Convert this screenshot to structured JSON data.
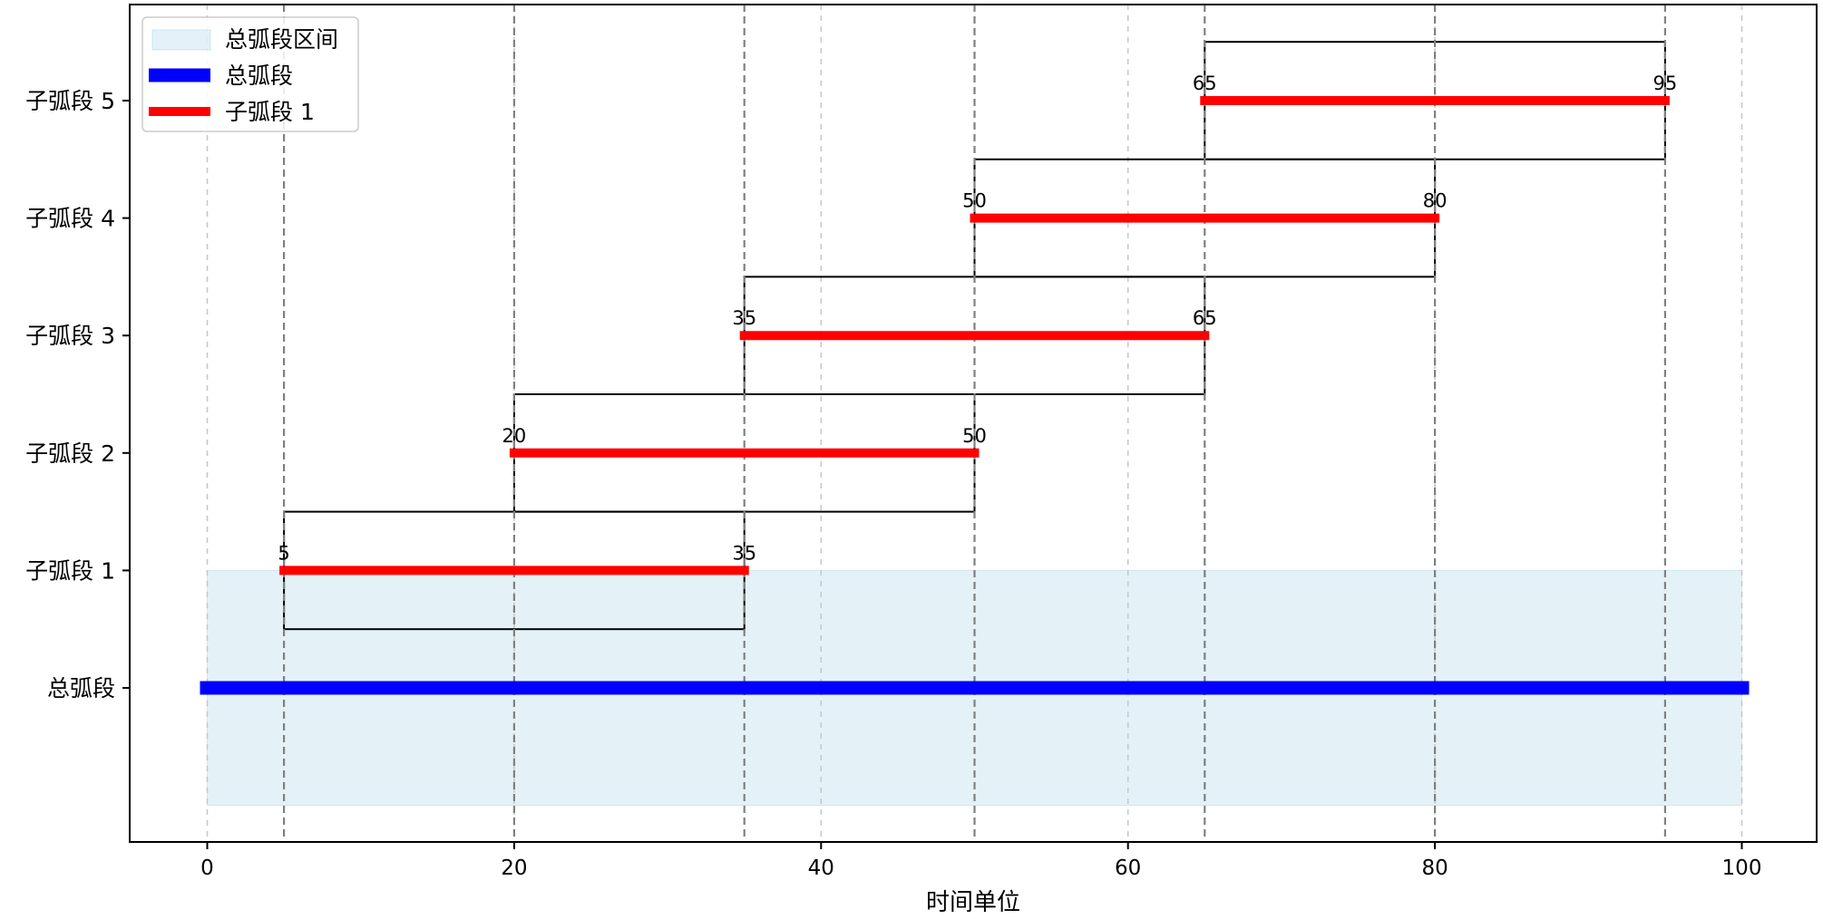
{
  "chart_data": {
    "type": "gantt",
    "title": "",
    "xlabel": "时间单位",
    "ylabel": "",
    "xlim": [
      -5,
      105
    ],
    "xticks": [
      0,
      20,
      40,
      60,
      80,
      100
    ],
    "xtick_labels": [
      "0",
      "20",
      "40",
      "60",
      "80",
      "100"
    ],
    "rows": [
      "总弧段",
      "子弧段 1",
      "子弧段 2",
      "子弧段 3",
      "子弧段 4",
      "子弧段 5"
    ],
    "total_arc": {
      "name": "总弧段",
      "start": 0,
      "end": 100,
      "color": "#0000ff"
    },
    "total_range": {
      "name": "总弧段区间",
      "start": 0,
      "end": 100,
      "color": "#add8e6"
    },
    "sub_arcs": [
      {
        "name": "子弧段 1",
        "start": 5,
        "end": 35,
        "start_label": "5",
        "end_label": "35"
      },
      {
        "name": "子弧段 2",
        "start": 20,
        "end": 50,
        "start_label": "20",
        "end_label": "50"
      },
      {
        "name": "子弧段 3",
        "start": 35,
        "end": 65,
        "start_label": "35",
        "end_label": "65"
      },
      {
        "name": "子弧段 4",
        "start": 50,
        "end": 80,
        "start_label": "50",
        "end_label": "80"
      },
      {
        "name": "子弧段 5",
        "start": 65,
        "end": 95,
        "start_label": "65",
        "end_label": "95"
      }
    ],
    "sub_arc_color": "#ff0000",
    "boundary_lines": [
      5,
      20,
      35,
      50,
      65,
      80,
      95
    ],
    "grid": true,
    "legend": {
      "placement": "top-left",
      "entries": [
        {
          "label": "总弧段区间",
          "kind": "patch",
          "color": "#add8e6"
        },
        {
          "label": "总弧段",
          "kind": "line",
          "color": "#0000ff"
        },
        {
          "label": "子弧段 1",
          "kind": "line",
          "color": "#ff0000"
        }
      ]
    }
  }
}
